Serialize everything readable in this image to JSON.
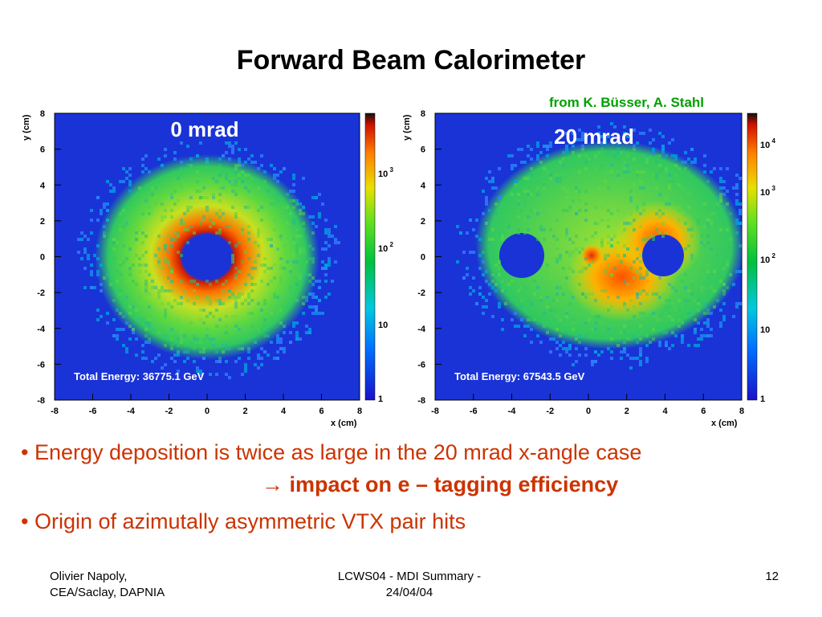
{
  "slide": {
    "title": "Forward Beam Calorimeter",
    "credit": "from K. Büsser, A. Stahl"
  },
  "plots": [
    {
      "label": "0 mrad",
      "energy": "Total Energy: 36775.1 GeV",
      "ylabel": "y (cm)",
      "xlabel": "x (cm)",
      "xticks": [
        "-8",
        "-6",
        "-4",
        "-2",
        "0",
        "2",
        "4",
        "6",
        "8"
      ],
      "yticks": [
        "8",
        "6",
        "4",
        "2",
        "0",
        "-2",
        "-4",
        "-6",
        "-8"
      ],
      "colorbar_ticks": [
        "10 3",
        "10 2",
        "10",
        "1"
      ]
    },
    {
      "label": "20 mrad",
      "energy": "Total Energy: 67543.5 GeV",
      "ylabel": "y (cm)",
      "xlabel": "x (cm)",
      "xticks": [
        "-8",
        "-6",
        "-4",
        "-2",
        "0",
        "2",
        "4",
        "6",
        "8"
      ],
      "yticks": [
        "8",
        "6",
        "4",
        "2",
        "0",
        "-2",
        "-4",
        "-6",
        "-8"
      ],
      "colorbar_ticks": [
        "10 4",
        "10 3",
        "10 2",
        "10",
        "1"
      ]
    }
  ],
  "bullets": {
    "b1": "• Energy deposition is twice as large in the 20 mrad x-angle case",
    "b1_arrow": "→",
    "b1_bold": "impact on e – tagging efficiency",
    "b2": "• Origin of azimutally asymmetric VTX pair hits"
  },
  "footer": {
    "left_line1": "Olivier Napoly,",
    "left_line2": "CEA/Saclay, DAPNIA",
    "mid_line1": "LCWS04 - MDI Summary -",
    "mid_line2": "24/04/04",
    "page": "12"
  },
  "colors": {
    "background_blue": "#1a33d6",
    "bullet_text": "#cc3300",
    "credit": "#00a000"
  }
}
